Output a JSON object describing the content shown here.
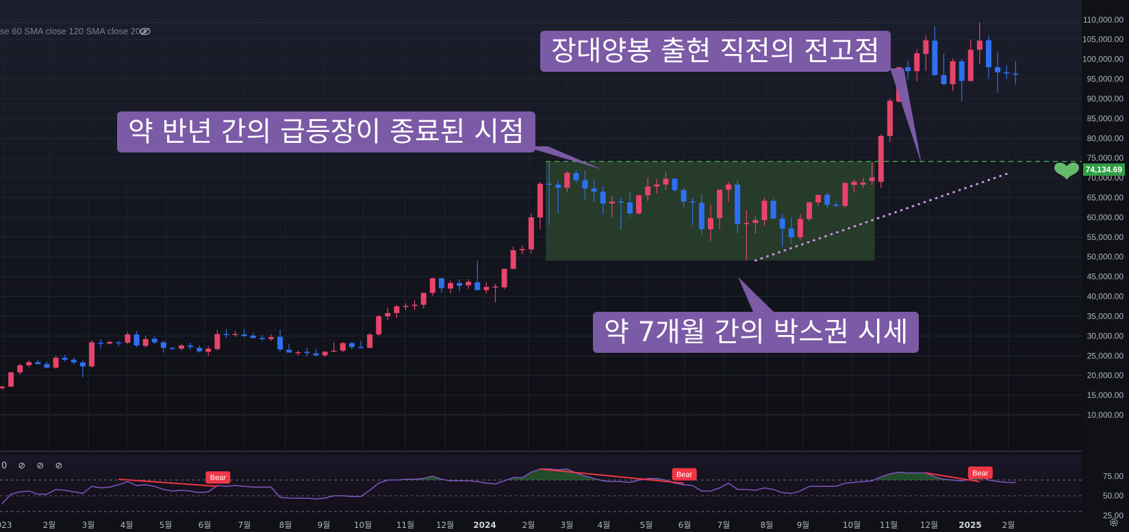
{
  "indicator_label": "se 60 SMA close 120 SMA close 200",
  "current_price_label": "74,134.69",
  "callouts": {
    "top_right": "장대양봉 출현 직전의 전고점",
    "left": "약 반년 간의 급등장이 종료된 시점",
    "bottom": "약 7개월 간의 박스권 시세"
  },
  "rsi_toggles": "0 ⊘ ⊘ ⊘",
  "colors": {
    "up": "#e8436b",
    "down": "#2f6ff2",
    "box_fill": "#2e4a2e",
    "callout": "#7b5aa6",
    "rsi_line": "#7e57c2",
    "bear": "#f23645",
    "dashed_line": "#4caf50",
    "dotted_line": "#c994e0"
  },
  "chart_data": {
    "type": "candlestick",
    "y_unit": "price",
    "ylim": [
      5000,
      115000
    ],
    "y_ticks": [
      "10,000.00",
      "15,000.00",
      "20,000.00",
      "25,000.00",
      "30,000.00",
      "35,000.00",
      "40,000.00",
      "45,000.00",
      "50,000.00",
      "55,000.00",
      "60,000.00",
      "65,000.00",
      "70,000.00",
      "75,000.00",
      "80,000.00",
      "85,000.00",
      "90,000.00",
      "95,000.00",
      "100,000.00",
      "105,000.00",
      "110,000.00"
    ],
    "x_ticks": [
      "023",
      "2월",
      "3월",
      "4월",
      "5월",
      "6월",
      "7월",
      "8월",
      "9월",
      "10월",
      "11월",
      "12월",
      "2024",
      "2월",
      "3월",
      "4월",
      "5월",
      "6월",
      "7월",
      "8월",
      "9월",
      "10월",
      "11월",
      "12월",
      "2025",
      "2월"
    ],
    "candles": [
      [
        16800,
        17400,
        16500,
        17200
      ],
      [
        17200,
        21000,
        17000,
        20800
      ],
      [
        20800,
        23000,
        20200,
        22600
      ],
      [
        22600,
        23800,
        22100,
        23400
      ],
      [
        23400,
        24000,
        22800,
        22900
      ],
      [
        22900,
        23500,
        21800,
        22000
      ],
      [
        22000,
        25000,
        21700,
        24500
      ],
      [
        24500,
        25200,
        23500,
        24000
      ],
      [
        24000,
        24500,
        22800,
        23300
      ],
      [
        23300,
        23800,
        19600,
        22300
      ],
      [
        22300,
        28900,
        22000,
        28400
      ],
      [
        28300,
        29200,
        26800,
        28100
      ],
      [
        28100,
        28800,
        27800,
        28500
      ],
      [
        28400,
        28800,
        27400,
        28300
      ],
      [
        28300,
        31000,
        28000,
        30400
      ],
      [
        30400,
        31200,
        27200,
        27600
      ],
      [
        27500,
        30100,
        27000,
        29200
      ],
      [
        29300,
        29900,
        28000,
        28400
      ],
      [
        28400,
        28800,
        25800,
        27000
      ],
      [
        27000,
        27200,
        26500,
        26900
      ],
      [
        26800,
        28000,
        26400,
        27600
      ],
      [
        27600,
        28400,
        26500,
        27200
      ],
      [
        27000,
        27600,
        25800,
        26100
      ],
      [
        26000,
        27400,
        24900,
        26800
      ],
      [
        26700,
        31500,
        26400,
        30500
      ],
      [
        30500,
        31800,
        29500,
        30300
      ],
      [
        30300,
        31300,
        29800,
        30500
      ],
      [
        30400,
        31800,
        29600,
        30000
      ],
      [
        30100,
        30800,
        29300,
        29500
      ],
      [
        29500,
        30300,
        28800,
        29200
      ],
      [
        29200,
        30400,
        28700,
        29700
      ],
      [
        29800,
        31600,
        26100,
        26600
      ],
      [
        26500,
        28000,
        25800,
        25800
      ],
      [
        25800,
        26300,
        25000,
        25900
      ],
      [
        26000,
        27000,
        24800,
        25700
      ],
      [
        25600,
        26800,
        24800,
        25100
      ],
      [
        25100,
        26200,
        24700,
        26000
      ],
      [
        26100,
        28400,
        25900,
        26300
      ],
      [
        26300,
        28500,
        25900,
        28200
      ],
      [
        28200,
        28500,
        26600,
        27200
      ],
      [
        27200,
        28800,
        26900,
        27000
      ],
      [
        27000,
        30800,
        26900,
        30400
      ],
      [
        30400,
        35300,
        30000,
        35000
      ],
      [
        35000,
        37200,
        34000,
        35800
      ],
      [
        35800,
        37900,
        34600,
        37500
      ],
      [
        37500,
        38300,
        36500,
        37600
      ],
      [
        37600,
        39000,
        36600,
        37900
      ],
      [
        37900,
        41000,
        37000,
        40900
      ],
      [
        40900,
        44700,
        40200,
        44600
      ],
      [
        44600,
        44800,
        40900,
        42100
      ],
      [
        42000,
        44100,
        40800,
        43400
      ],
      [
        43400,
        44300,
        41300,
        42700
      ],
      [
        42800,
        44300,
        41900,
        43700
      ],
      [
        43600,
        49000,
        41500,
        41600
      ],
      [
        41600,
        43500,
        40800,
        42400
      ],
      [
        42400,
        43200,
        38500,
        42500
      ],
      [
        42300,
        47000,
        41900,
        47000
      ],
      [
        47000,
        52600,
        46800,
        51700
      ],
      [
        51700,
        52900,
        50600,
        52000
      ],
      [
        51900,
        61000,
        50900,
        60000
      ],
      [
        60000,
        69000,
        57000,
        68500
      ],
      [
        68500,
        73800,
        58000,
        68300
      ],
      [
        68300,
        69300,
        61000,
        67500
      ],
      [
        67500,
        71700,
        66300,
        71300
      ],
      [
        71200,
        72000,
        68700,
        69400
      ],
      [
        69400,
        71900,
        64400,
        67300
      ],
      [
        67300,
        69500,
        64000,
        66500
      ],
      [
        66500,
        67800,
        60700,
        63500
      ],
      [
        63500,
        65400,
        60000,
        64000
      ],
      [
        64000,
        65000,
        56800,
        63800
      ],
      [
        63800,
        66400,
        60100,
        61000
      ],
      [
        61000,
        65500,
        60700,
        65600
      ],
      [
        65600,
        70000,
        64100,
        67800
      ],
      [
        67800,
        69700,
        66000,
        68300
      ],
      [
        68300,
        71500,
        66900,
        69800
      ],
      [
        69800,
        69800,
        66500,
        66900
      ],
      [
        66900,
        67500,
        62500,
        64000
      ],
      [
        64000,
        64900,
        58000,
        63800
      ],
      [
        63700,
        66000,
        55700,
        57000
      ],
      [
        57000,
        63300,
        54000,
        59800
      ],
      [
        59800,
        67000,
        57000,
        67000
      ],
      [
        67000,
        69000,
        64000,
        68300
      ],
      [
        68300,
        69500,
        56000,
        58300
      ],
      [
        58300,
        61800,
        49100,
        58600
      ],
      [
        58600,
        60500,
        55800,
        59300
      ],
      [
        59300,
        65000,
        57800,
        64200
      ],
      [
        64200,
        64800,
        59500,
        59700
      ],
      [
        59700,
        60900,
        52500,
        57200
      ],
      [
        57200,
        60000,
        53200,
        55000
      ],
      [
        55000,
        60800,
        54200,
        59600
      ],
      [
        59600,
        64000,
        59000,
        63800
      ],
      [
        63800,
        65500,
        63000,
        65700
      ],
      [
        65700,
        66300,
        62300,
        63200
      ],
      [
        63200,
        64000,
        62600,
        62900
      ],
      [
        62900,
        68900,
        62500,
        68700
      ],
      [
        68200,
        69500,
        66400,
        69000
      ],
      [
        68300,
        70000,
        67500,
        68800
      ],
      [
        69200,
        74000,
        68200,
        70100
      ],
      [
        69000,
        81000,
        67500,
        80600
      ],
      [
        80600,
        90000,
        79000,
        89500
      ],
      [
        89300,
        98000,
        89000,
        98000
      ],
      [
        98000,
        99600,
        95000,
        97000
      ],
      [
        97000,
        102500,
        94400,
        101500
      ],
      [
        101300,
        106000,
        97000,
        104800
      ],
      [
        104700,
        108400,
        95800,
        96000
      ],
      [
        96000,
        101400,
        93500,
        93700
      ],
      [
        93700,
        100200,
        92000,
        99500
      ],
      [
        99500,
        100000,
        89300,
        94500
      ],
      [
        94500,
        105000,
        94400,
        102400
      ],
      [
        102400,
        109300,
        98700,
        104700
      ],
      [
        104800,
        106000,
        95100,
        98000
      ],
      [
        98000,
        101800,
        91500,
        96700
      ],
      [
        96700,
        98500,
        95000,
        96400
      ],
      [
        96400,
        99500,
        93600,
        96100
      ]
    ],
    "rsi": {
      "label_values": [
        "75.00",
        "50.00",
        "25.00"
      ],
      "upper": 70,
      "lower": 30,
      "ylim": [
        22,
        93
      ],
      "values": [
        40,
        52,
        55,
        56,
        52,
        52,
        58,
        57,
        55,
        53,
        62,
        60,
        61,
        64,
        68,
        63,
        64,
        62,
        58,
        56,
        57,
        56,
        54,
        55,
        63,
        62,
        63,
        62,
        61,
        61,
        61,
        48,
        47,
        47,
        47,
        46,
        47,
        50,
        50,
        49,
        49,
        57,
        66,
        70,
        70,
        71,
        71,
        72,
        75,
        71,
        69,
        69,
        69,
        68,
        66,
        65,
        69,
        73,
        73,
        80,
        84,
        84,
        83,
        84,
        79,
        75,
        72,
        69,
        68,
        68,
        67,
        70,
        72,
        72,
        70,
        66,
        64,
        63,
        56,
        56,
        60,
        66,
        58,
        58,
        57,
        60,
        58,
        54,
        53,
        56,
        62,
        62,
        62,
        62,
        66,
        67,
        68,
        69,
        74,
        78,
        80,
        79,
        79,
        79,
        74,
        71,
        70,
        69,
        71,
        74,
        70,
        68,
        67,
        67
      ]
    },
    "annotations": [
      {
        "type": "box",
        "from_candle": 61,
        "to_candle": 97,
        "low": 49100,
        "high": 74134.69
      },
      {
        "type": "hline",
        "value": 74134.69,
        "style": "dashed",
        "from_candle": 61
      },
      {
        "type": "trend",
        "from": [
          84,
          49100
        ],
        "to": [
          112,
          71000
        ],
        "style": "dotted"
      },
      {
        "type": "bear",
        "rsi_from": [
          13,
          71
        ],
        "rsi_to": [
          24,
          62
        ],
        "label": "Bear"
      },
      {
        "type": "bear",
        "rsi_from": [
          60,
          84
        ],
        "rsi_to": [
          76,
          66
        ],
        "label": "Bear"
      },
      {
        "type": "bear",
        "rsi_from": [
          103,
          79
        ],
        "rsi_to": [
          109,
          68
        ],
        "label": "Bear"
      }
    ]
  }
}
